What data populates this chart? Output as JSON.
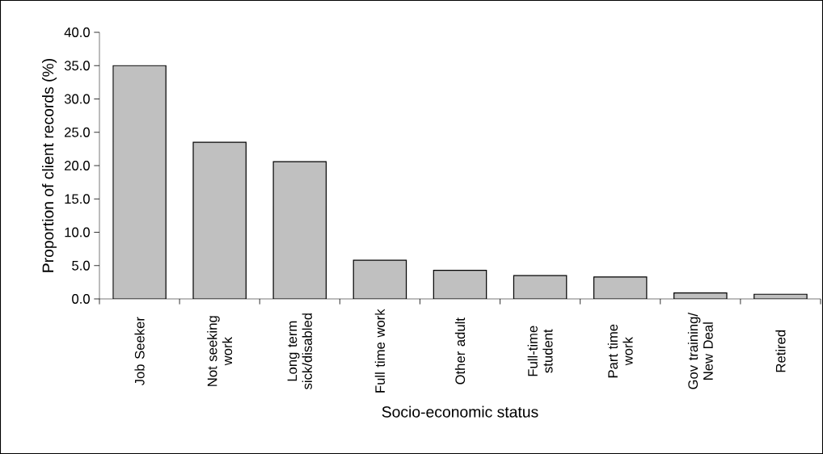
{
  "chart_data": {
    "type": "bar",
    "xlabel": "Socio-economic status",
    "ylabel": "Proportion of client records (%)",
    "categories": [
      "Job Seeker",
      "Not seeking work",
      "Long term sick/disabled",
      "Full time work",
      "Other adult",
      "Full-time student",
      "Part time work",
      "Gov training/ New Deal",
      "Retired"
    ],
    "values": [
      35.0,
      23.5,
      20.6,
      5.8,
      4.3,
      3.5,
      3.3,
      0.9,
      0.7
    ],
    "color": "#c0c0c0",
    "ylim": [
      0,
      40
    ],
    "yticks": [
      {
        "value": 0,
        "label": "0.0"
      },
      {
        "value": 5,
        "label": "5.0"
      },
      {
        "value": 10,
        "label": "10.0"
      },
      {
        "value": 15,
        "label": "15.0"
      },
      {
        "value": 20,
        "label": "20.0"
      },
      {
        "value": 25,
        "label": "25.0"
      },
      {
        "value": 30,
        "label": "30.0"
      },
      {
        "value": 35,
        "label": "35.0"
      },
      {
        "value": 40,
        "label": "40.0"
      }
    ]
  }
}
